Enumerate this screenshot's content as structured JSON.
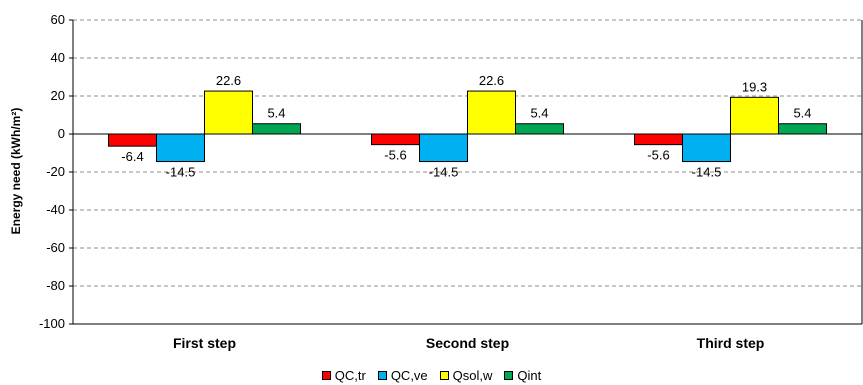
{
  "chart_data": {
    "type": "bar",
    "categories": [
      "First step",
      "Second step",
      "Third step"
    ],
    "ylabel": "Energy need (kWh/m²)",
    "xlabel": "",
    "ylim": [
      -100,
      60
    ],
    "yticks": [
      60,
      40,
      20,
      0,
      -20,
      -40,
      -60,
      -80,
      -100
    ],
    "grid": true,
    "legend_position": "bottom",
    "series": [
      {
        "name": "QC,tr",
        "color": "#ff0000",
        "values": [
          -6.4,
          -5.6,
          -5.6
        ],
        "labels": [
          "-6.4",
          "-5.6",
          "-5.6"
        ]
      },
      {
        "name": "QC,ve",
        "color": "#00b0f0",
        "values": [
          -14.5,
          -14.5,
          -14.5
        ],
        "labels": [
          "-14.5",
          "-14.5",
          "-14.5"
        ]
      },
      {
        "name": "Qsol,w",
        "color": "#ffff00",
        "values": [
          22.6,
          22.6,
          19.3
        ],
        "labels": [
          "22.6",
          "22.6",
          "19.3"
        ]
      },
      {
        "name": "Qint",
        "color": "#00a651",
        "values": [
          5.4,
          5.4,
          5.4
        ],
        "labels": [
          "5.4",
          "5.4",
          "5.4"
        ]
      }
    ]
  }
}
